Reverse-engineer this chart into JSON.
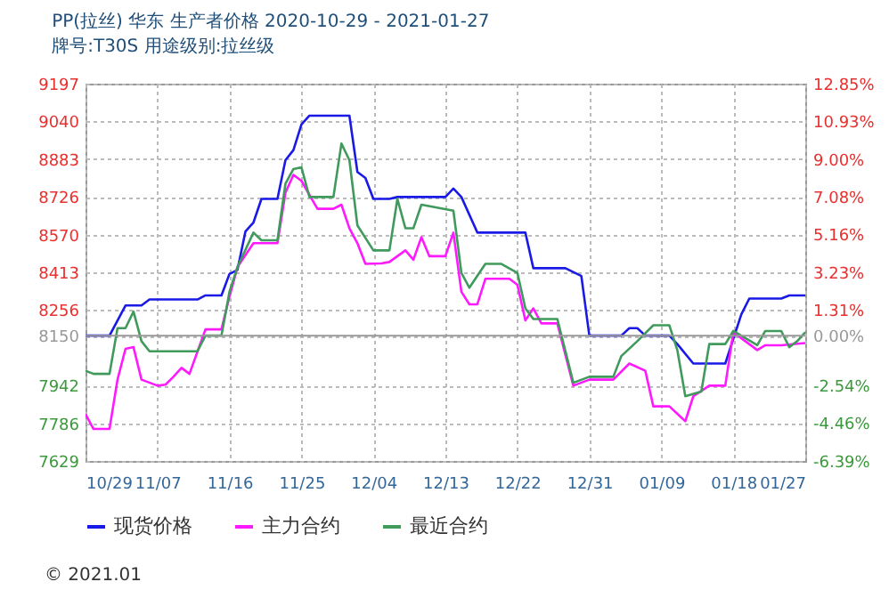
{
  "chart_data": {
    "type": "line",
    "title": "PP(拉丝) 华东 生产者价格 2020-10-29 - 2021-01-27",
    "subtitle": "牌号:T30S 用途级别:拉丝级",
    "xlim": [
      "2020-10-29",
      "2021-01-27"
    ],
    "xticks": [
      {
        "value": "2020-10-29",
        "label": "10/29"
      },
      {
        "value": "2020-11-07",
        "label": "11/07"
      },
      {
        "value": "2020-11-16",
        "label": "11/16"
      },
      {
        "value": "2020-11-25",
        "label": "11/25"
      },
      {
        "value": "2020-12-04",
        "label": "12/04"
      },
      {
        "value": "2020-12-13",
        "label": "12/13"
      },
      {
        "value": "2020-12-22",
        "label": "12/22"
      },
      {
        "value": "2020-12-31",
        "label": "12/31"
      },
      {
        "value": "2021-01-09",
        "label": "01/09"
      },
      {
        "value": "2021-01-18",
        "label": "01/18"
      },
      {
        "value": "2021-01-27",
        "label": "01/27"
      }
    ],
    "ylim": [
      7629,
      9197
    ],
    "yticks": [
      7629,
      7786,
      7942,
      8150,
      8256,
      8413,
      8570,
      8726,
      8883,
      9040,
      9197
    ],
    "y2lim": [
      -6.39,
      12.85
    ],
    "y2ticks": [
      {
        "value": -6.39,
        "label": "-6.39%"
      },
      {
        "value": -4.46,
        "label": "-4.46%"
      },
      {
        "value": -2.54,
        "label": "-2.54%"
      },
      {
        "value": 0,
        "label": "0.00%"
      },
      {
        "value": 1.31,
        "label": "1.31%"
      },
      {
        "value": 3.23,
        "label": "3.23%"
      },
      {
        "value": 5.16,
        "label": "5.16%"
      },
      {
        "value": 7.08,
        "label": "7.08%"
      },
      {
        "value": 9.0,
        "label": "9.00%"
      },
      {
        "value": 10.93,
        "label": "10.93%"
      },
      {
        "value": 12.85,
        "label": "12.85%"
      }
    ],
    "ref_lines": [
      {
        "axis": "y2",
        "value": 0,
        "color": "#999999"
      }
    ],
    "grid": true,
    "legend": "bottom",
    "line_style": "solid",
    "marker": "none",
    "annotations": [
      "© 2021.01"
    ],
    "series": [
      {
        "name": "现货价格",
        "color": "#1a1ae6",
        "x": [
          "2020-10-29",
          "2020-11-01",
          "2020-11-03",
          "2020-11-05",
          "2020-11-06",
          "2020-11-12",
          "2020-11-13",
          "2020-11-15",
          "2020-11-16",
          "2020-11-17",
          "2020-11-18",
          "2020-11-19",
          "2020-11-20",
          "2020-11-22",
          "2020-11-23",
          "2020-11-24",
          "2020-11-25",
          "2020-11-26",
          "2020-12-01",
          "2020-12-02",
          "2020-12-03",
          "2020-12-04",
          "2020-12-06",
          "2020-12-07",
          "2020-12-13",
          "2020-12-14",
          "2020-12-15",
          "2020-12-17",
          "2020-12-23",
          "2020-12-24",
          "2020-12-28",
          "2020-12-30",
          "2020-12-31",
          "2021-01-04",
          "2021-01-05",
          "2021-01-06",
          "2021-01-07",
          "2021-01-10",
          "2021-01-11",
          "2021-01-13",
          "2021-01-17",
          "2021-01-19",
          "2021-01-20",
          "2021-01-24",
          "2021-01-25",
          "2021-01-27"
        ],
        "values": [
          8150,
          8150,
          8275,
          8275,
          8300,
          8300,
          8317,
          8317,
          8406,
          8423,
          8583,
          8620,
          8718,
          8718,
          8879,
          8921,
          9027,
          9064,
          9064,
          8830,
          8805,
          8718,
          8718,
          8726,
          8726,
          8761,
          8726,
          8578,
          8578,
          8430,
          8430,
          8398,
          8150,
          8150,
          8181,
          8181,
          8150,
          8150,
          8115,
          8034,
          8034,
          8238,
          8304,
          8304,
          8317,
          8317
        ]
      },
      {
        "name": "主力合约",
        "color": "#ff19ff",
        "x": [
          "2020-10-29",
          "2020-10-30",
          "2020-11-01",
          "2020-11-02",
          "2020-11-03",
          "2020-11-04",
          "2020-11-05",
          "2020-11-07",
          "2020-11-08",
          "2020-11-09",
          "2020-11-10",
          "2020-11-11",
          "2020-11-13",
          "2020-11-15",
          "2020-11-16",
          "2020-11-17",
          "2020-11-19",
          "2020-11-22",
          "2020-11-23",
          "2020-11-24",
          "2020-11-25",
          "2020-11-27",
          "2020-11-29",
          "2020-11-30",
          "2020-12-01",
          "2020-12-02",
          "2020-12-03",
          "2020-12-05",
          "2020-12-06",
          "2020-12-08",
          "2020-12-09",
          "2020-12-10",
          "2020-12-11",
          "2020-12-13",
          "2020-12-14",
          "2020-12-15",
          "2020-12-16",
          "2020-12-17",
          "2020-12-18",
          "2020-12-21",
          "2020-12-22",
          "2020-12-23",
          "2020-12-24",
          "2020-12-25",
          "2020-12-27",
          "2020-12-29",
          "2020-12-31",
          "2021-01-03",
          "2021-01-05",
          "2021-01-07",
          "2021-01-08",
          "2021-01-10",
          "2021-01-12",
          "2021-01-13",
          "2021-01-15",
          "2021-01-17",
          "2021-01-18",
          "2021-01-21",
          "2021-01-22",
          "2021-01-24",
          "2021-01-27"
        ],
        "values": [
          7824,
          7762,
          7762,
          7967,
          8095,
          8102,
          7967,
          7942,
          7946,
          7979,
          8016,
          7991,
          8176,
          8176,
          8312,
          8435,
          8534,
          8534,
          8744,
          8818,
          8793,
          8677,
          8677,
          8694,
          8596,
          8534,
          8448,
          8450,
          8456,
          8504,
          8465,
          8559,
          8480,
          8480,
          8578,
          8332,
          8280,
          8280,
          8386,
          8386,
          8361,
          8213,
          8263,
          8201,
          8201,
          7942,
          7967,
          7967,
          8034,
          8004,
          7856,
          7856,
          7794,
          7898,
          7942,
          7942,
          8164,
          8090,
          8110,
          8110,
          8119
        ]
      },
      {
        "name": "最近合约",
        "color": "#3f9a5c",
        "x": [
          "2020-10-29",
          "2020-10-30",
          "2020-11-01",
          "2020-11-02",
          "2020-11-03",
          "2020-11-04",
          "2020-11-05",
          "2020-11-06",
          "2020-11-12",
          "2020-11-13",
          "2020-11-15",
          "2020-11-16",
          "2020-11-17",
          "2020-11-19",
          "2020-11-20",
          "2020-11-22",
          "2020-11-23",
          "2020-11-24",
          "2020-11-25",
          "2020-11-26",
          "2020-11-29",
          "2020-11-30",
          "2020-12-01",
          "2020-12-02",
          "2020-12-04",
          "2020-12-06",
          "2020-12-07",
          "2020-12-08",
          "2020-12-09",
          "2020-12-10",
          "2020-12-14",
          "2020-12-15",
          "2020-12-16",
          "2020-12-18",
          "2020-12-20",
          "2020-12-22",
          "2020-12-23",
          "2020-12-24",
          "2020-12-27",
          "2020-12-29",
          "2020-12-31",
          "2021-01-03",
          "2021-01-04",
          "2021-01-06",
          "2021-01-08",
          "2021-01-10",
          "2021-01-11",
          "2021-01-12",
          "2021-01-14",
          "2021-01-15",
          "2021-01-17",
          "2021-01-18",
          "2021-01-21",
          "2021-01-22",
          "2021-01-24",
          "2021-01-25",
          "2021-01-26",
          "2021-01-27"
        ],
        "values": [
          8004,
          7991,
          7991,
          8181,
          8181,
          8250,
          8127,
          8085,
          8085,
          8150,
          8150,
          8332,
          8435,
          8578,
          8546,
          8546,
          8781,
          8842,
          8849,
          8726,
          8726,
          8948,
          8879,
          8608,
          8504,
          8504,
          8718,
          8596,
          8596,
          8694,
          8669,
          8411,
          8349,
          8448,
          8448,
          8411,
          8263,
          8219,
          8219,
          7954,
          7979,
          7979,
          8065,
          8127,
          8193,
          8193,
          8090,
          7898,
          7917,
          8115,
          8115,
          8169,
          8110,
          8169,
          8169,
          8102,
          8127,
          8164
        ]
      }
    ]
  }
}
